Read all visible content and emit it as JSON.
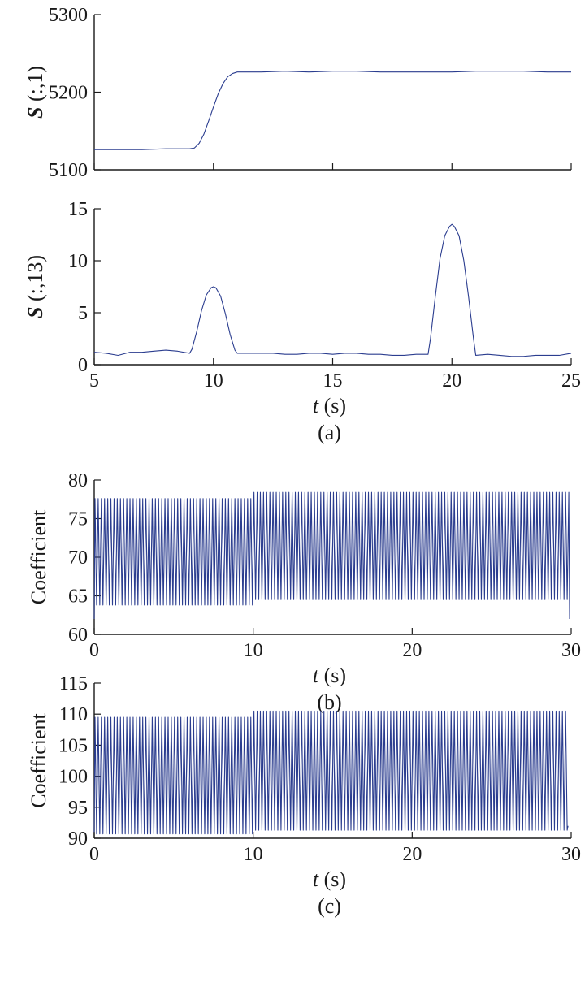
{
  "colors": {
    "series": "#2b3d8f",
    "axis": "#1a1a1a"
  },
  "chart_data": [
    {
      "id": "a-top",
      "type": "line",
      "ylabel": {
        "bold": "S",
        "rest": " (:,1)"
      },
      "xlim": [
        5,
        25
      ],
      "ylim": [
        5100,
        5300
      ],
      "xticks": [
        5,
        10,
        15,
        20,
        25
      ],
      "xtick_labels": [],
      "yticks": [
        5100,
        5200,
        5300
      ],
      "ytick_labels": [
        "5100",
        "5200",
        "5300"
      ],
      "series": [
        {
          "x": [
            5.0,
            6.0,
            7.0,
            8.0,
            8.5,
            9.0,
            9.2,
            9.4,
            9.6,
            9.8,
            10.0,
            10.2,
            10.4,
            10.6,
            10.8,
            11.0,
            11.5,
            12.0,
            13.0,
            14.0,
            15.0,
            16.0,
            17.0,
            18.0,
            19.0,
            20.0,
            21.0,
            22.0,
            23.0,
            24.0,
            25.0
          ],
          "y": [
            5126,
            5126,
            5126,
            5127,
            5127,
            5127,
            5128,
            5134,
            5146,
            5163,
            5181,
            5198,
            5211,
            5220,
            5224,
            5226,
            5226,
            5226,
            5227,
            5226,
            5227,
            5227,
            5226,
            5226,
            5226,
            5226,
            5227,
            5227,
            5227,
            5226,
            5226
          ]
        }
      ]
    },
    {
      "id": "a-bottom",
      "type": "line",
      "ylabel": {
        "bold": "S",
        "rest": " (:,13)"
      },
      "xlabel": {
        "italic": "t",
        "rest": " (s)"
      },
      "caption": "(a)",
      "xlim": [
        5,
        25
      ],
      "ylim": [
        0,
        15
      ],
      "xticks": [
        5,
        10,
        15,
        20,
        25
      ],
      "xtick_labels": [
        "5",
        "10",
        "15",
        "20",
        "25"
      ],
      "yticks": [
        0,
        5,
        10,
        15
      ],
      "ytick_labels": [
        "0",
        "5",
        "10",
        "15"
      ],
      "series": [
        {
          "x": [
            5.0,
            5.5,
            6.0,
            6.5,
            7.0,
            7.5,
            8.0,
            8.5,
            9.0,
            9.1,
            9.3,
            9.5,
            9.7,
            9.9,
            10.0,
            10.1,
            10.3,
            10.5,
            10.7,
            10.9,
            11.0,
            11.5,
            12.0,
            12.5,
            13.0,
            13.5,
            14.0,
            14.5,
            15.0,
            15.5,
            16.0,
            16.5,
            17.0,
            17.5,
            18.0,
            18.5,
            19.0,
            19.1,
            19.3,
            19.5,
            19.7,
            19.9,
            20.0,
            20.1,
            20.3,
            20.5,
            20.7,
            20.9,
            21.0,
            21.5,
            22.0,
            22.5,
            23.0,
            23.5,
            24.0,
            24.5,
            25.0
          ],
          "y": [
            1.2,
            1.1,
            0.9,
            1.2,
            1.2,
            1.3,
            1.4,
            1.3,
            1.1,
            1.5,
            3.2,
            5.2,
            6.7,
            7.4,
            7.5,
            7.4,
            6.6,
            4.9,
            2.9,
            1.4,
            1.1,
            1.1,
            1.1,
            1.1,
            1.0,
            1.0,
            1.1,
            1.1,
            1.0,
            1.1,
            1.1,
            1.0,
            1.0,
            0.9,
            0.9,
            1.0,
            1.0,
            2.5,
            6.5,
            10.2,
            12.4,
            13.3,
            13.5,
            13.3,
            12.4,
            10.0,
            6.5,
            2.6,
            0.9,
            1.0,
            0.9,
            0.8,
            0.8,
            0.9,
            0.9,
            0.9,
            1.1
          ]
        }
      ]
    },
    {
      "id": "b",
      "type": "line",
      "ylabel": {
        "text": "Coefficient"
      },
      "xlabel": {
        "italic": "t",
        "rest": " (s)"
      },
      "caption": "(b)",
      "xlim": [
        0,
        30
      ],
      "ylim": [
        60,
        80
      ],
      "xticks": [
        0,
        10,
        20,
        30
      ],
      "xtick_labels": [
        "0",
        "10",
        "20",
        "30"
      ],
      "yticks": [
        60,
        65,
        70,
        75,
        80
      ],
      "ytick_labels": [
        "60",
        "65",
        "70",
        "75",
        "80"
      ],
      "oscillation": {
        "t_start": 0.0,
        "t_end": 29.9,
        "period": 0.2,
        "segments": [
          {
            "from": 0.0,
            "to": 10.0,
            "min": 63.8,
            "max": 77.6
          },
          {
            "from": 10.0,
            "to": 29.9,
            "min": 64.5,
            "max": 78.4
          }
        ],
        "start_value": 62.0,
        "end_value": 62.0
      }
    },
    {
      "id": "c",
      "type": "line",
      "ylabel": {
        "text": "Coefficient"
      },
      "xlabel": {
        "italic": "t",
        "rest": " (s)"
      },
      "caption": "(c)",
      "xlim": [
        0,
        30
      ],
      "ylim": [
        90,
        115
      ],
      "xticks": [
        0,
        10,
        20,
        30
      ],
      "xtick_labels": [
        "0",
        "10",
        "20",
        "30"
      ],
      "yticks": [
        90,
        95,
        100,
        105,
        110,
        115
      ],
      "ytick_labels": [
        "90",
        "95",
        "100",
        "105",
        "110",
        "115"
      ],
      "oscillation": {
        "t_start": 0.0,
        "t_end": 29.8,
        "period": 0.2,
        "segments": [
          {
            "from": 0.0,
            "to": 10.0,
            "min": 90.7,
            "max": 109.5
          },
          {
            "from": 10.0,
            "to": 29.8,
            "min": 91.3,
            "max": 110.5
          }
        ],
        "start_value": 91.0,
        "end_value": 92.0
      }
    }
  ]
}
